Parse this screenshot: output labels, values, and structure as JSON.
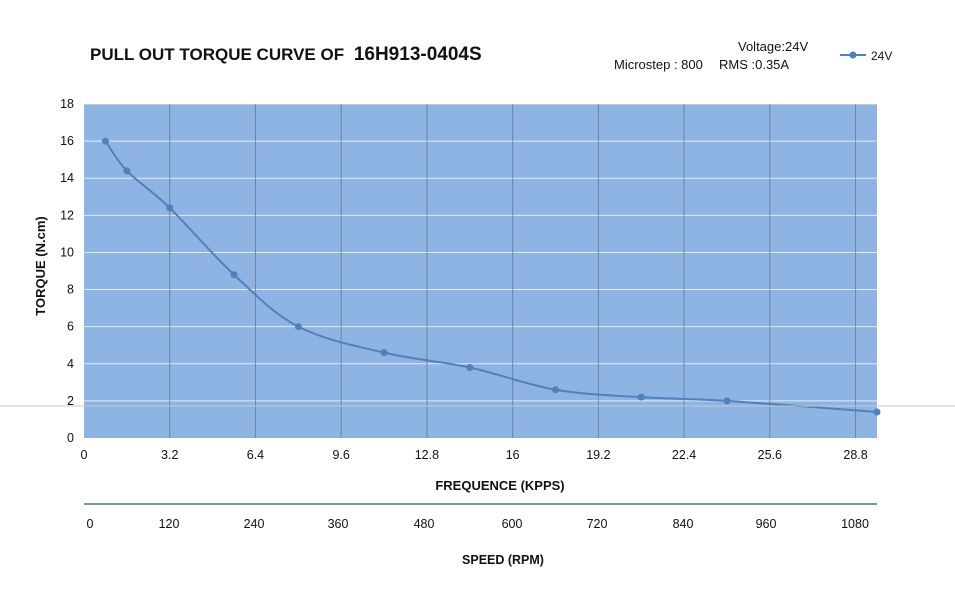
{
  "chart_data": {
    "type": "line",
    "title": "PULL OUT TORQUE CURVE OF",
    "title_model": "16H913-0404S",
    "info": {
      "voltage": "Voltage:24V",
      "microstep": "Microstep : 800",
      "rms": "RMS :0.35A"
    },
    "legend": {
      "position": "top-right",
      "entries": [
        "24V"
      ]
    },
    "xlabel": "FREQUENCE (KPPS)",
    "ylabel": "TORQUE (N.cm)",
    "x2label": "SPEED (RPM)",
    "xlim": [
      0,
      29.6
    ],
    "ylim": [
      0,
      18
    ],
    "x_ticks": [
      0,
      3.2,
      6.4,
      9.6,
      12.8,
      16,
      19.2,
      22.4,
      25.6,
      28.8
    ],
    "x_tick_labels": [
      "0",
      "3.2",
      "6.4",
      "9.6",
      "12.8",
      "16",
      "19.2",
      "22.4",
      "25.6",
      "28.8"
    ],
    "y_ticks": [
      0,
      2,
      4,
      6,
      8,
      10,
      12,
      14,
      16,
      18
    ],
    "y_tick_labels": [
      "0",
      "2",
      "4",
      "6",
      "8",
      "10",
      "12",
      "14",
      "16",
      "18"
    ],
    "x2_ticks": [
      0,
      120,
      240,
      360,
      480,
      600,
      720,
      840,
      960,
      1080
    ],
    "x2_tick_labels": [
      "0",
      "120",
      "240",
      "360",
      "480",
      "600",
      "720",
      "840",
      "960",
      "1080"
    ],
    "grid": true,
    "series": [
      {
        "name": "24V",
        "x": [
          0.8,
          1.6,
          3.2,
          5.6,
          8.0,
          11.2,
          14.4,
          17.6,
          20.8,
          24.0,
          29.6
        ],
        "y": [
          16.0,
          14.4,
          12.4,
          8.8,
          6.0,
          4.6,
          3.8,
          2.6,
          2.2,
          2.0,
          1.4
        ]
      }
    ],
    "colors": {
      "plot_bg": "#8eb4e3",
      "line": "#4f81bd",
      "gridline": "#ffffff",
      "vgrid": "#5f6f86"
    }
  }
}
